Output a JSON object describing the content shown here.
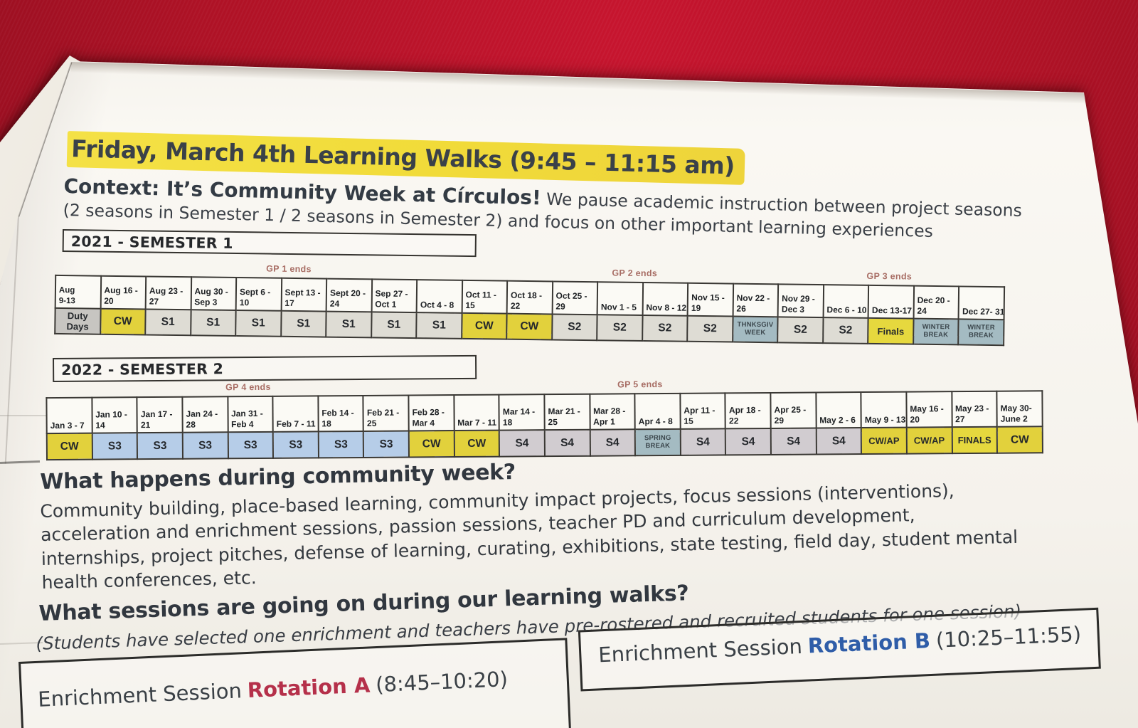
{
  "photo": {
    "background_color": "#b01226",
    "page_color": "#f8f6f1",
    "highlight_color": "#f2dd3d"
  },
  "title": "Friday, March 4th Learning Walks (9:45 – 11:15 am)",
  "context": {
    "lead": "Context: It’s Community Week at Círculos!",
    "lead_rest": " We pause academic instruction between project seasons",
    "line2": "(2 seasons in Semester 1 / 2 seasons in Semester 2) and focus on other important learning experiences"
  },
  "semester1": {
    "label": "2021 - SEMESTER 1",
    "gp_markers": [
      {
        "text": "GP 1 ends",
        "left_pct": 24.6
      },
      {
        "text": "GP 2 ends",
        "left_pct": 61.0
      },
      {
        "text": "GP 3 ends",
        "left_pct": 87.8
      }
    ],
    "weeks": [
      {
        "date": "Aug|9-13",
        "session": "Duty Days",
        "kind": "duty"
      },
      {
        "date": "Aug 16 -|20",
        "session": "CW",
        "kind": "cw"
      },
      {
        "date": "Aug 23 -|27",
        "session": "S1",
        "kind": "s1"
      },
      {
        "date": "Aug 30 -|Sep 3",
        "session": "S1",
        "kind": "s1"
      },
      {
        "date": "Sept 6 -|10",
        "session": "S1",
        "kind": "s1"
      },
      {
        "date": "Sept 13 -|17",
        "session": "S1",
        "kind": "s1"
      },
      {
        "date": "Sept 20 -|24",
        "session": "S1",
        "kind": "s1"
      },
      {
        "date": "Sep 27 -|Oct 1",
        "session": "S1",
        "kind": "s1"
      },
      {
        "date": "Oct 4 - 8",
        "session": "S1",
        "kind": "s1"
      },
      {
        "date": "Oct 11 -|15",
        "session": "CW",
        "kind": "cw"
      },
      {
        "date": "Oct 18 -|22",
        "session": "CW",
        "kind": "cw"
      },
      {
        "date": "Oct 25 -|29",
        "session": "S2",
        "kind": "s2"
      },
      {
        "date": "Nov 1 - 5",
        "session": "S2",
        "kind": "s2"
      },
      {
        "date": "Nov 8 - 12",
        "session": "S2",
        "kind": "s2"
      },
      {
        "date": "Nov 15 -|19",
        "session": "S2",
        "kind": "s2"
      },
      {
        "date": "Nov 22 -|26",
        "session": "THNKSGIV|WEEK",
        "kind": "break"
      },
      {
        "date": "Nov 29 -|Dec 3",
        "session": "S2",
        "kind": "s2"
      },
      {
        "date": "Dec 6 - 10",
        "session": "S2",
        "kind": "s2"
      },
      {
        "date": "Dec 13-17",
        "session": "Finals",
        "kind": "finals"
      },
      {
        "date": "Dec 20 -|24",
        "session": "WINTER|BREAK",
        "kind": "break"
      },
      {
        "date": "Dec 27- 31",
        "session": "WINTER|BREAK",
        "kind": "break"
      }
    ]
  },
  "semester2": {
    "label": "2022 - SEMESTER 2",
    "gp_markers": [
      {
        "text": "GP 4 ends",
        "left_pct": 20.3
      },
      {
        "text": "GP 5 ends",
        "left_pct": 59.6
      }
    ],
    "weeks": [
      {
        "date": "Jan 3 - 7",
        "session": "CW",
        "kind": "cw"
      },
      {
        "date": "Jan 10 -|14",
        "session": "S3",
        "kind": "s3"
      },
      {
        "date": "Jan 17 -|21",
        "session": "S3",
        "kind": "s3"
      },
      {
        "date": "Jan 24 -|28",
        "session": "S3",
        "kind": "s3"
      },
      {
        "date": "Jan 31 -|Feb 4",
        "session": "S3",
        "kind": "s3"
      },
      {
        "date": "Feb 7 - 11",
        "session": "S3",
        "kind": "s3"
      },
      {
        "date": "Feb 14 -|18",
        "session": "S3",
        "kind": "s3"
      },
      {
        "date": "Feb 21 -|25",
        "session": "S3",
        "kind": "s3"
      },
      {
        "date": "Feb 28 -|Mar 4",
        "session": "CW",
        "kind": "cw"
      },
      {
        "date": "Mar 7 - 11",
        "session": "CW",
        "kind": "cw"
      },
      {
        "date": "Mar 14 -|18",
        "session": "S4",
        "kind": "s4"
      },
      {
        "date": "Mar 21 -|25",
        "session": "S4",
        "kind": "s4"
      },
      {
        "date": "Mar 28 -|Apr 1",
        "session": "S4",
        "kind": "s4"
      },
      {
        "date": "Apr 4 - 8",
        "session": "SPRING|BREAK",
        "kind": "break"
      },
      {
        "date": "Apr 11 -|15",
        "session": "S4",
        "kind": "s4"
      },
      {
        "date": "Apr 18 -|22",
        "session": "S4",
        "kind": "s4"
      },
      {
        "date": "Apr 25 -|29",
        "session": "S4",
        "kind": "s4"
      },
      {
        "date": "May 2 - 6",
        "session": "S4",
        "kind": "s4"
      },
      {
        "date": "May 9 - 13",
        "session": "CW/AP",
        "kind": "cw"
      },
      {
        "date": "May 16 -|20",
        "session": "CW/AP",
        "kind": "cw"
      },
      {
        "date": "May 23 -|27",
        "session": "FINALS",
        "kind": "finals"
      },
      {
        "date": "May 30-|June 2",
        "session": "CW",
        "kind": "cw"
      }
    ]
  },
  "community_week": {
    "heading": "What happens during community week?",
    "lines": [
      "Community building, place-based learning, community impact projects, focus sessions (interventions),",
      "acceleration and enrichment sessions, passion sessions, teacher PD and curriculum development,",
      "internships, project pitches, defense of learning, curating, exhibitions, state testing, field day, student mental",
      "health conferences, etc."
    ]
  },
  "sessions": {
    "heading": "What sessions are going on during our learning walks?",
    "subnote": "(Students have selected one enrichment and teachers have pre-rostered and recruited students for one session)"
  },
  "rotations": [
    {
      "prefix": "Enrichment Session",
      "name": "Rotation A",
      "time": "(8:45–10:20)",
      "color": "#b5304a"
    },
    {
      "prefix": "Enrichment Session",
      "name": "Rotation B",
      "time": "(10:25–11:55)",
      "color": "#2f5da8"
    }
  ]
}
